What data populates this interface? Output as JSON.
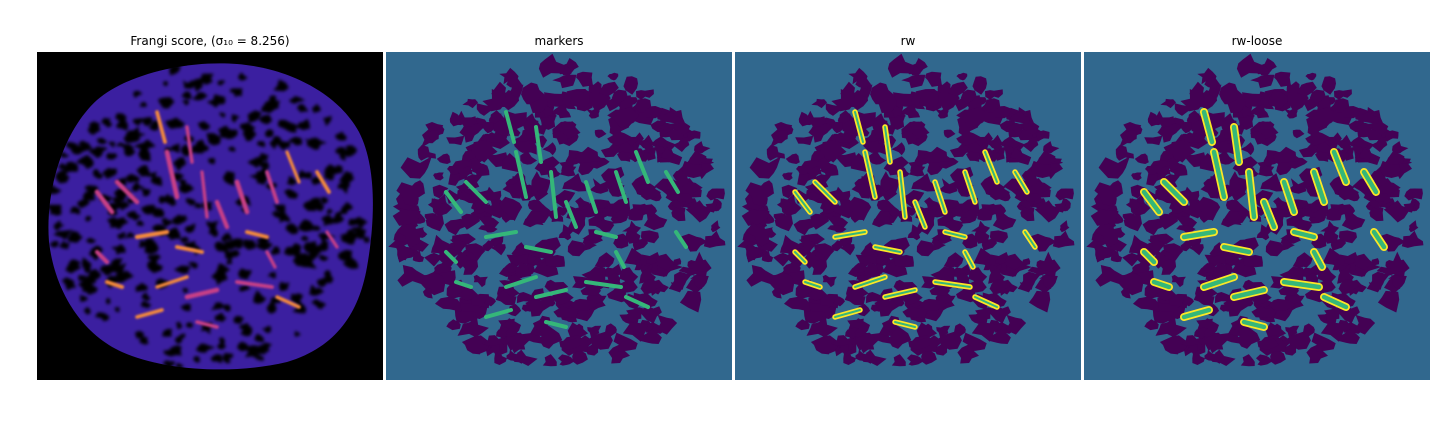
{
  "panels": [
    {
      "title": "Frangi score, (σ₁₀ = 8.256)",
      "name": "frangi-score-panel"
    },
    {
      "title": "markers",
      "name": "markers-panel"
    },
    {
      "title": "rw",
      "name": "rw-panel"
    },
    {
      "title": "rw-loose",
      "name": "rw-loose-panel"
    }
  ],
  "colors": {
    "background_teal": "#31688e",
    "blob_purple": "#440154",
    "marker_green": "#35b779",
    "segment_yellow": "#fde725",
    "frangi_black": "#000000",
    "frangi_blue": "#2a1a9a",
    "frangi_hot": "#f58a3a"
  }
}
